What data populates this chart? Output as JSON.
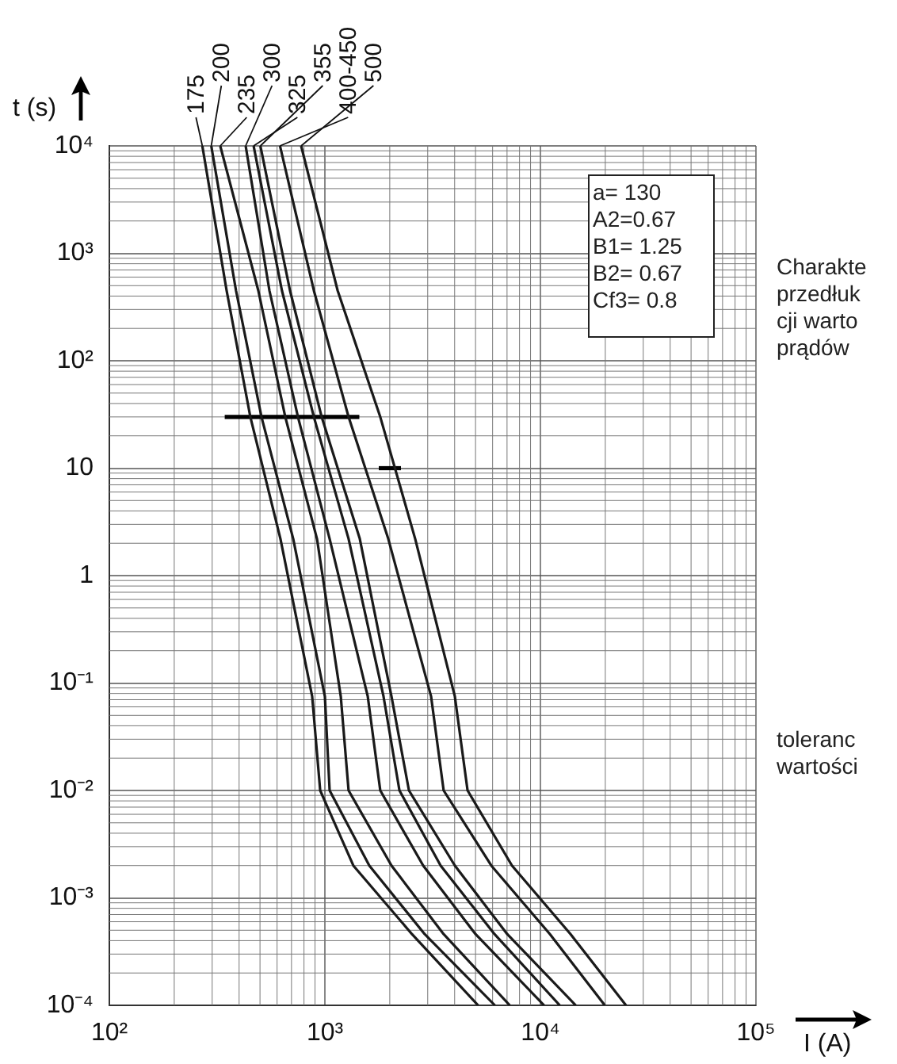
{
  "chart_data": {
    "type": "line",
    "xlabel": "I (A)",
    "ylabel": "t (s)",
    "log": "xy",
    "grid": true,
    "legend": false,
    "xlim": [
      100,
      100000
    ],
    "ylim": [
      0.0001,
      10000
    ],
    "xticks": [
      {
        "value": 100,
        "label": "10²"
      },
      {
        "value": 1000,
        "label": "10³"
      },
      {
        "value": 10000,
        "label": "10⁴"
      },
      {
        "value": 100000,
        "label": "10⁵"
      }
    ],
    "yticks": [
      {
        "value": 0.0001,
        "label": "10⁻⁴"
      },
      {
        "value": 0.001,
        "label": "10⁻³"
      },
      {
        "value": 0.01,
        "label": "10⁻²"
      },
      {
        "value": 0.1,
        "label": "10⁻¹"
      },
      1,
      10,
      {
        "value": 100,
        "label": "10²"
      },
      {
        "value": 1000,
        "label": "10³"
      },
      {
        "value": 10000,
        "label": "10⁴"
      }
    ],
    "annotations": [
      "a= 130\nA2=0.67\nB1= 1.25\nB2= 0.67\nCf3= 0.8",
      "Charakte\nprzedłuk\ncji warto\nprądów",
      "toleranc\nwartości"
    ],
    "series": [
      {
        "name": "175",
        "color": "#1a1a1a",
        "x": [
          270,
          350,
          451,
          622,
          873,
          951,
          1355,
          2535,
          5140
        ],
        "values": [
          10000,
          450,
          30,
          2.2,
          0.075,
          0.01,
          0.002,
          0.00046,
          0.0001
        ]
      },
      {
        "name": "200",
        "color": "#1a1a1a",
        "x": [
          297,
          387,
          508,
          713,
          1000,
          1052,
          1607,
          2904,
          6150
        ],
        "values": [
          10000,
          450,
          30,
          2.2,
          0.075,
          0.01,
          0.002,
          0.00046,
          0.0001
        ]
      },
      {
        "name": "235",
        "color": "#1a1a1a",
        "x": [
          327,
          491,
          655,
          919,
          1185,
          1288,
          2037,
          3556,
          7211
        ],
        "values": [
          10000,
          450,
          30,
          2.2,
          0.075,
          0.01,
          0.002,
          0.00046,
          0.0001
        ]
      },
      {
        "name": "300",
        "color": "#1a1a1a",
        "x": [
          429,
          553,
          750,
          1052,
          1581,
          1807,
          2858,
          5000,
          10400
        ],
        "values": [
          10000,
          450,
          30,
          2.2,
          0.075,
          0.01,
          0.002,
          0.00046,
          0.0001
        ]
      },
      {
        "name": "325",
        "color": "#1a1a1a",
        "x": [
          467,
          632,
          889,
          1288,
          1871,
          2218,
          3443,
          6124,
          12300
        ],
        "values": [
          10000,
          450,
          30,
          2.2,
          0.075,
          0.01,
          0.002,
          0.00046,
          0.0001
        ]
      },
      {
        "name": "355",
        "color": "#1a1a1a",
        "x": [
          502,
          689,
          966,
          1452,
          2037,
          2455,
          4009,
          7015,
          14590
        ],
        "values": [
          10000,
          450,
          30,
          2.2,
          0.075,
          0.01,
          0.002,
          0.00046,
          0.0001
        ]
      },
      {
        "name": "400-450",
        "color": "#1a1a1a",
        "x": [
          619,
          889,
          1288,
          1968,
          3110,
          3556,
          5916,
          11070,
          19900
        ],
        "values": [
          10000,
          450,
          30,
          2.2,
          0.075,
          0.01,
          0.002,
          0.00046,
          0.0001
        ]
      },
      {
        "name": "500",
        "color": "#1a1a1a",
        "x": [
          776,
          1146,
          1807,
          2624,
          4009,
          4592,
          7379,
          13800,
          24950
        ],
        "values": [
          10000,
          450,
          30,
          2.2,
          0.075,
          0.01,
          0.002,
          0.00046,
          0.0001
        ]
      },
      {
        "color": "#000000",
        "x": [
          343,
          1445
        ],
        "values": [
          30,
          30
        ]
      },
      {
        "color": "#000000",
        "x": [
          1778,
          2254
        ],
        "values": [
          10,
          10
        ]
      }
    ]
  }
}
